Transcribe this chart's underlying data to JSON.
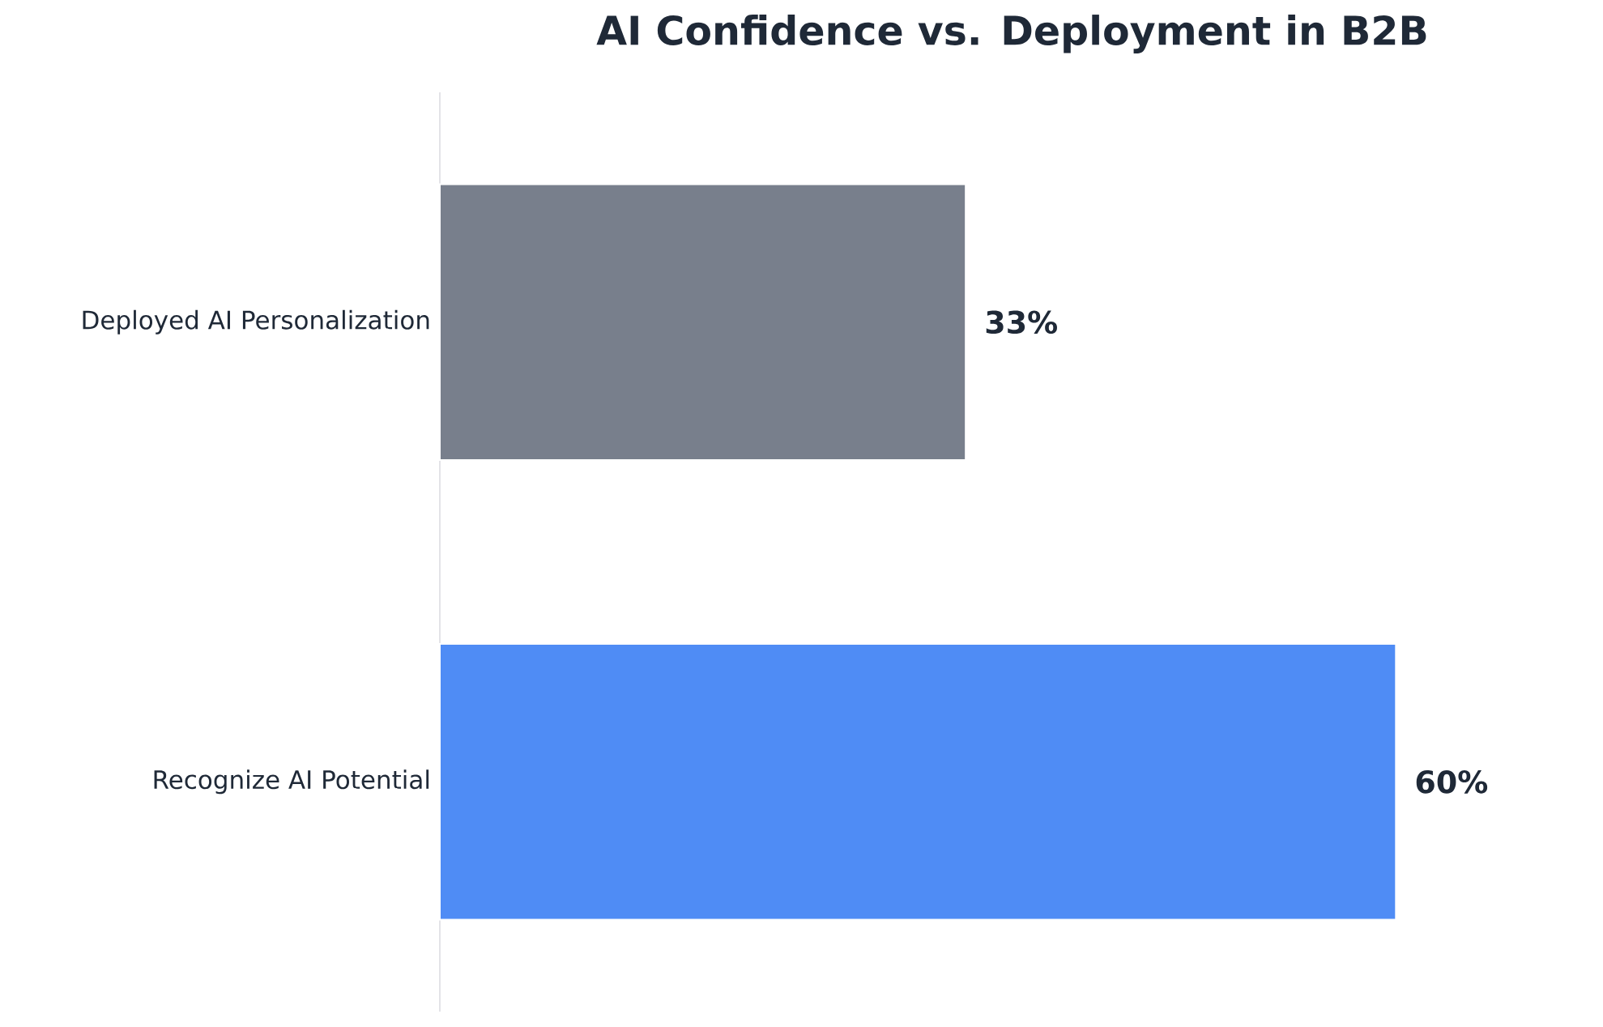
{
  "chart_data": {
    "type": "bar",
    "orientation": "horizontal",
    "title": "AI Confidence vs. Deployment in B2B",
    "categories": [
      "Deployed AI Personalization",
      "Recognize AI Potential"
    ],
    "values": [
      33,
      60
    ],
    "colors": [
      "#787f8c",
      "#4f8cf5"
    ],
    "value_labels": [
      "33%",
      "60%"
    ],
    "tick_labels": "y"
  }
}
